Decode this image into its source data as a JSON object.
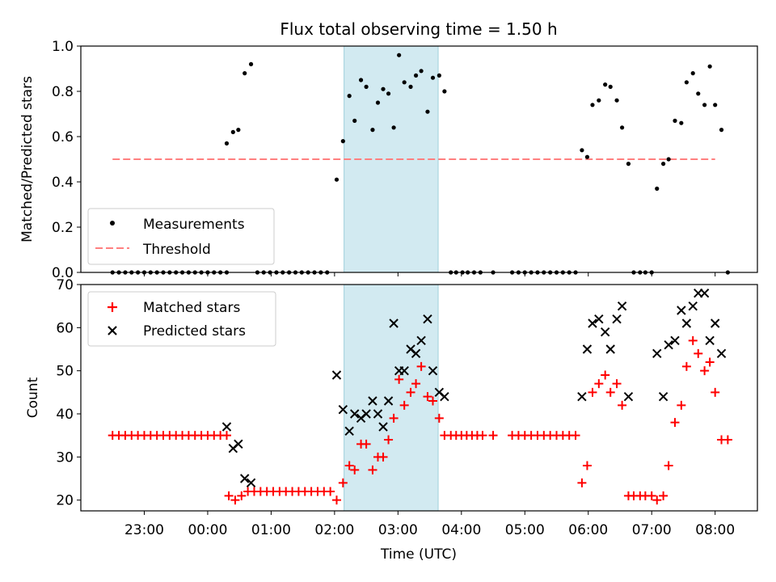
{
  "chart_data": [
    {
      "type": "scatter",
      "title": "Flux total observing time = 1.50 h",
      "ylabel": "Matched/Predicted stars",
      "ylim": [
        0,
        1.0
      ],
      "yticks": [
        "0.0",
        "0.2",
        "0.4",
        "0.6",
        "0.8",
        "1.0"
      ],
      "legend": {
        "placement": "lower-left",
        "entries": [
          "Measurements",
          "Threshold"
        ]
      },
      "threshold": {
        "value": 0.5,
        "from": "22:30",
        "to": "08:00",
        "color": "#ff8080"
      },
      "highlight_band": {
        "from": "02:09",
        "to": "03:38",
        "color": "#add8e6"
      },
      "series": [
        {
          "name": "Measurements",
          "color": "#000000",
          "points": [
            [
              "22:30",
              0
            ],
            [
              "22:36",
              0
            ],
            [
              "22:42",
              0
            ],
            [
              "22:48",
              0
            ],
            [
              "22:54",
              0
            ],
            [
              "23:00",
              0
            ],
            [
              "23:06",
              0
            ],
            [
              "23:12",
              0
            ],
            [
              "23:18",
              0
            ],
            [
              "23:24",
              0
            ],
            [
              "23:30",
              0
            ],
            [
              "23:36",
              0
            ],
            [
              "23:42",
              0
            ],
            [
              "23:48",
              0
            ],
            [
              "23:54",
              0
            ],
            [
              "00:00",
              0
            ],
            [
              "00:06",
              0
            ],
            [
              "00:12",
              0
            ],
            [
              "00:18",
              0
            ],
            [
              "00:18",
              0.57
            ],
            [
              "00:24",
              0.62
            ],
            [
              "00:29",
              0.63
            ],
            [
              "00:35",
              0.88
            ],
            [
              "00:41",
              0.92
            ],
            [
              "00:47",
              0
            ],
            [
              "00:53",
              0
            ],
            [
              "00:59",
              0
            ],
            [
              "01:05",
              0
            ],
            [
              "01:11",
              0
            ],
            [
              "01:17",
              0
            ],
            [
              "01:23",
              0
            ],
            [
              "01:29",
              0
            ],
            [
              "01:35",
              0
            ],
            [
              "01:41",
              0
            ],
            [
              "01:47",
              0
            ],
            [
              "01:53",
              0
            ],
            [
              "02:02",
              0.41
            ],
            [
              "02:08",
              0.58
            ],
            [
              "02:14",
              0.78
            ],
            [
              "02:19",
              0.67
            ],
            [
              "02:25",
              0.85
            ],
            [
              "02:30",
              0.82
            ],
            [
              "02:36",
              0.63
            ],
            [
              "02:41",
              0.75
            ],
            [
              "02:46",
              0.81
            ],
            [
              "02:51",
              0.79
            ],
            [
              "02:56",
              0.64
            ],
            [
              "03:01",
              0.96
            ],
            [
              "03:06",
              0.84
            ],
            [
              "03:12",
              0.82
            ],
            [
              "03:17",
              0.87
            ],
            [
              "03:22",
              0.89
            ],
            [
              "03:28",
              0.71
            ],
            [
              "03:33",
              0.86
            ],
            [
              "03:39",
              0.87
            ],
            [
              "03:44",
              0.8
            ],
            [
              "03:50",
              0
            ],
            [
              "03:55",
              0
            ],
            [
              "04:01",
              0
            ],
            [
              "04:06",
              0
            ],
            [
              "04:12",
              0
            ],
            [
              "04:18",
              0
            ],
            [
              "04:30",
              0
            ],
            [
              "04:48",
              0
            ],
            [
              "04:54",
              0
            ],
            [
              "05:00",
              0
            ],
            [
              "05:06",
              0
            ],
            [
              "05:12",
              0
            ],
            [
              "05:18",
              0
            ],
            [
              "05:24",
              0
            ],
            [
              "05:30",
              0
            ],
            [
              "05:36",
              0
            ],
            [
              "05:42",
              0
            ],
            [
              "05:48",
              0
            ],
            [
              "05:54",
              0.54
            ],
            [
              "05:59",
              0.51
            ],
            [
              "06:04",
              0.74
            ],
            [
              "06:10",
              0.76
            ],
            [
              "06:16",
              0.83
            ],
            [
              "06:21",
              0.82
            ],
            [
              "06:27",
              0.76
            ],
            [
              "06:32",
              0.64
            ],
            [
              "06:38",
              0.48
            ],
            [
              "06:43",
              0
            ],
            [
              "06:49",
              0
            ],
            [
              "06:54",
              0
            ],
            [
              "07:00",
              0
            ],
            [
              "07:05",
              0.37
            ],
            [
              "07:11",
              0.48
            ],
            [
              "07:16",
              0.5
            ],
            [
              "07:22",
              0.67
            ],
            [
              "07:28",
              0.66
            ],
            [
              "07:33",
              0.84
            ],
            [
              "07:39",
              0.88
            ],
            [
              "07:44",
              0.79
            ],
            [
              "07:50",
              0.74
            ],
            [
              "07:55",
              0.91
            ],
            [
              "08:00",
              0.74
            ],
            [
              "08:06",
              0.63
            ],
            [
              "08:12",
              0
            ]
          ]
        }
      ]
    },
    {
      "type": "scatter",
      "xlabel": "Time (UTC)",
      "ylabel": "Count",
      "ylim": [
        17.5,
        70
      ],
      "yticks": [
        "20",
        "30",
        "40",
        "50",
        "60",
        "70"
      ],
      "xticks": [
        "23:00",
        "00:00",
        "01:00",
        "02:00",
        "03:00",
        "04:00",
        "05:00",
        "06:00",
        "07:00",
        "08:00"
      ],
      "legend": {
        "placement": "upper-left",
        "entries": [
          "Matched stars",
          "Predicted stars"
        ]
      },
      "highlight_band": {
        "from": "02:09",
        "to": "03:38",
        "color": "#add8e6"
      },
      "series": [
        {
          "name": "Matched stars",
          "color": "#ff0000",
          "points": [
            [
              "22:30",
              35
            ],
            [
              "22:36",
              35
            ],
            [
              "22:42",
              35
            ],
            [
              "22:48",
              35
            ],
            [
              "22:54",
              35
            ],
            [
              "23:00",
              35
            ],
            [
              "23:06",
              35
            ],
            [
              "23:12",
              35
            ],
            [
              "23:18",
              35
            ],
            [
              "23:24",
              35
            ],
            [
              "23:30",
              35
            ],
            [
              "23:36",
              35
            ],
            [
              "23:42",
              35
            ],
            [
              "23:48",
              35
            ],
            [
              "23:54",
              35
            ],
            [
              "00:00",
              35
            ],
            [
              "00:06",
              35
            ],
            [
              "00:12",
              35
            ],
            [
              "00:18",
              35
            ],
            [
              "00:20",
              21
            ],
            [
              "00:26",
              20
            ],
            [
              "00:32",
              21
            ],
            [
              "00:38",
              22
            ],
            [
              "00:44",
              22
            ],
            [
              "00:50",
              22
            ],
            [
              "00:56",
              22
            ],
            [
              "01:02",
              22
            ],
            [
              "01:08",
              22
            ],
            [
              "01:14",
              22
            ],
            [
              "01:20",
              22
            ],
            [
              "01:26",
              22
            ],
            [
              "01:32",
              22
            ],
            [
              "01:38",
              22
            ],
            [
              "01:44",
              22
            ],
            [
              "01:50",
              22
            ],
            [
              "01:56",
              22
            ],
            [
              "02:02",
              20
            ],
            [
              "02:08",
              24
            ],
            [
              "02:14",
              28
            ],
            [
              "02:19",
              27
            ],
            [
              "02:25",
              33
            ],
            [
              "02:30",
              33
            ],
            [
              "02:36",
              27
            ],
            [
              "02:41",
              30
            ],
            [
              "02:46",
              30
            ],
            [
              "02:51",
              34
            ],
            [
              "02:56",
              39
            ],
            [
              "03:01",
              48
            ],
            [
              "03:06",
              42
            ],
            [
              "03:12",
              45
            ],
            [
              "03:17",
              47
            ],
            [
              "03:22",
              51
            ],
            [
              "03:28",
              44
            ],
            [
              "03:33",
              43
            ],
            [
              "03:39",
              39
            ],
            [
              "03:44",
              35
            ],
            [
              "03:50",
              35
            ],
            [
              "03:55",
              35
            ],
            [
              "04:00",
              35
            ],
            [
              "04:05",
              35
            ],
            [
              "04:10",
              35
            ],
            [
              "04:15",
              35
            ],
            [
              "04:20",
              35
            ],
            [
              "04:30",
              35
            ],
            [
              "04:48",
              35
            ],
            [
              "04:54",
              35
            ],
            [
              "05:00",
              35
            ],
            [
              "05:06",
              35
            ],
            [
              "05:12",
              35
            ],
            [
              "05:18",
              35
            ],
            [
              "05:24",
              35
            ],
            [
              "05:30",
              35
            ],
            [
              "05:36",
              35
            ],
            [
              "05:42",
              35
            ],
            [
              "05:48",
              35
            ],
            [
              "05:54",
              24
            ],
            [
              "05:59",
              28
            ],
            [
              "06:04",
              45
            ],
            [
              "06:10",
              47
            ],
            [
              "06:16",
              49
            ],
            [
              "06:21",
              45
            ],
            [
              "06:27",
              47
            ],
            [
              "06:32",
              42
            ],
            [
              "06:38",
              21
            ],
            [
              "06:43",
              21
            ],
            [
              "06:49",
              21
            ],
            [
              "06:54",
              21
            ],
            [
              "07:00",
              21
            ],
            [
              "07:05",
              20
            ],
            [
              "07:11",
              21
            ],
            [
              "07:16",
              28
            ],
            [
              "07:22",
              38
            ],
            [
              "07:28",
              42
            ],
            [
              "07:33",
              51
            ],
            [
              "07:39",
              57
            ],
            [
              "07:44",
              54
            ],
            [
              "07:50",
              50
            ],
            [
              "07:55",
              52
            ],
            [
              "08:00",
              45
            ],
            [
              "08:06",
              34
            ],
            [
              "08:12",
              34
            ]
          ]
        },
        {
          "name": "Predicted stars",
          "color": "#000000",
          "points": [
            [
              "00:18",
              37
            ],
            [
              "00:24",
              32
            ],
            [
              "00:29",
              33
            ],
            [
              "00:35",
              25
            ],
            [
              "00:41",
              24
            ],
            [
              "02:02",
              49
            ],
            [
              "02:08",
              41
            ],
            [
              "02:14",
              36
            ],
            [
              "02:19",
              40
            ],
            [
              "02:25",
              39
            ],
            [
              "02:30",
              40
            ],
            [
              "02:36",
              43
            ],
            [
              "02:41",
              40
            ],
            [
              "02:46",
              37
            ],
            [
              "02:51",
              43
            ],
            [
              "02:56",
              61
            ],
            [
              "03:01",
              50
            ],
            [
              "03:06",
              50
            ],
            [
              "03:12",
              55
            ],
            [
              "03:17",
              54
            ],
            [
              "03:22",
              57
            ],
            [
              "03:28",
              62
            ],
            [
              "03:33",
              50
            ],
            [
              "03:39",
              45
            ],
            [
              "03:44",
              44
            ],
            [
              "05:54",
              44
            ],
            [
              "05:59",
              55
            ],
            [
              "06:04",
              61
            ],
            [
              "06:10",
              62
            ],
            [
              "06:16",
              59
            ],
            [
              "06:21",
              55
            ],
            [
              "06:27",
              62
            ],
            [
              "06:32",
              65
            ],
            [
              "06:38",
              44
            ],
            [
              "07:05",
              54
            ],
            [
              "07:11",
              44
            ],
            [
              "07:16",
              56
            ],
            [
              "07:22",
              57
            ],
            [
              "07:28",
              64
            ],
            [
              "07:33",
              61
            ],
            [
              "07:39",
              65
            ],
            [
              "07:44",
              68
            ],
            [
              "07:50",
              68
            ],
            [
              "07:55",
              57
            ],
            [
              "08:00",
              61
            ],
            [
              "08:06",
              54
            ]
          ]
        }
      ]
    }
  ]
}
